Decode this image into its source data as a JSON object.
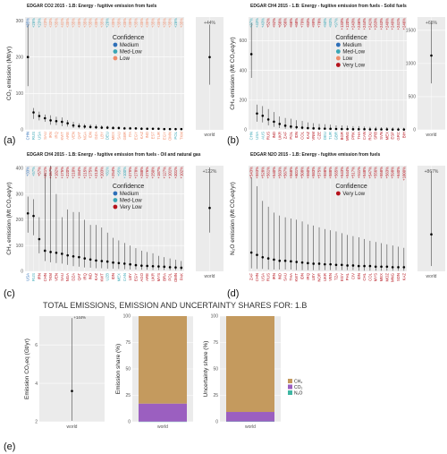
{
  "colors": {
    "Medium": "#2e6fb8",
    "Med-Low": "#3aa6b5",
    "Low": "#f08c6a",
    "Very Low": "#b5121b",
    "panel_bg": "#ebebeb",
    "grid": "#ffffff",
    "ch4": "#c49a5e",
    "co2": "#9b5fc0",
    "n2o": "#3fb6a3"
  },
  "legend": {
    "title": "Confidence",
    "items": [
      "Medium",
      "Med-Low",
      "Low",
      "Very Low"
    ]
  },
  "panel_e": {
    "title": "TOTAL EMISSIONS, EMISSION AND UNCERTAINTY SHARES FOR: 1.B",
    "label": "(e)"
  },
  "chart_data": [
    {
      "id": "a",
      "type": "scatter",
      "label": "(a)",
      "title": "EDGAR CO2 2015 - 1.B: Energy - fugitive emission from fuels",
      "ylabel": "CO₂ emission (Mt/yr)",
      "ylim": [
        0,
        310
      ],
      "yticks": [
        0,
        100,
        200,
        300
      ],
      "legend_items": [
        "Medium",
        "Med-Low",
        "Low"
      ],
      "categories": [
        "CHN",
        "RUS",
        "USA",
        "SAU",
        "IRN",
        "IRQ",
        "KWT",
        "ARE",
        "VEN",
        "QAT",
        "NGA",
        "IDN",
        "DZA",
        "LBY",
        "DEU",
        "MEX",
        "SAU",
        "GBR",
        "ITA",
        "EGY",
        "KAZ",
        "IND",
        "EST",
        "TUR",
        "EGY",
        "OMN",
        "POL",
        "TKM"
      ],
      "values": [
        200,
        48,
        38,
        32,
        26,
        24,
        22,
        18,
        12,
        10,
        9,
        8,
        7,
        6,
        6,
        5,
        5,
        4,
        4,
        4,
        3,
        3,
        3,
        3,
        2,
        2,
        2,
        2
      ],
      "lower": [
        120,
        30,
        26,
        22,
        14,
        13,
        10,
        9,
        5,
        4,
        3,
        3,
        2,
        2,
        2,
        2,
        2,
        2,
        2,
        1,
        1,
        1,
        1,
        1,
        1,
        1,
        1,
        1
      ],
      "upper": [
        290,
        60,
        50,
        42,
        40,
        36,
        34,
        27,
        22,
        18,
        16,
        15,
        14,
        12,
        11,
        10,
        9,
        8,
        8,
        7,
        7,
        6,
        6,
        6,
        5,
        5,
        5,
        5
      ],
      "uncertainty": [
        "+35%",
        "+26%",
        "+23%",
        "+23%",
        "+33%",
        "+35%",
        "+41%",
        "+35%",
        "+35%",
        "+35%",
        "+35%",
        "+35%",
        "+35%",
        "+35%",
        "+26%",
        "+35%",
        "+35%",
        "+35%",
        "+35%",
        "+35%",
        "+35%",
        "+35%",
        "+35%",
        "+35%",
        "+35%",
        "+35%",
        "+26%",
        "+35%"
      ],
      "confidence": [
        "Medium",
        "Med-Low",
        "Med-Low",
        "Low",
        "Low",
        "Low",
        "Low",
        "Low",
        "Low",
        "Low",
        "Low",
        "Low",
        "Low",
        "Low",
        "Med-Low",
        "Low",
        "Low",
        "Low",
        "Low",
        "Low",
        "Low",
        "Low",
        "Low",
        "Low",
        "Low",
        "Low",
        "Med-Low",
        "Low"
      ],
      "world": {
        "label": "world",
        "value": 580,
        "lower": 360,
        "upper": 840,
        "uncertainty": "+44%",
        "ylim": [
          0,
          900
        ],
        "yticks": []
      }
    },
    {
      "id": "b",
      "type": "scatter",
      "label": "(b)",
      "title": "EDGAR CH4 2015 - 1.B: Energy - fugitive emission from fuels - Solid fuels",
      "ylabel": "CH₄ emission (Mt CO₂eq/yr)",
      "ylim": [
        0,
        760
      ],
      "yticks": [
        0,
        200,
        400,
        600
      ],
      "legend_items": [
        "Medium",
        "Med-Low",
        "Low",
        "Very Low"
      ],
      "categories": [
        "CHN",
        "USA",
        "AUS",
        "RUS",
        "IND",
        "UKR",
        "ZAF",
        "POL",
        "IDN",
        "COL",
        "KAZ",
        "VNM",
        "CZE",
        "DEU",
        "TUR",
        "GBR",
        "BGR",
        "MNG",
        "PRK",
        "THA",
        "CAN",
        "ROU",
        "SRB",
        "SVN",
        "MEX",
        "ESP",
        "GRC",
        "BIH"
      ],
      "values": [
        510,
        110,
        95,
        70,
        55,
        40,
        28,
        22,
        18,
        15,
        12,
        10,
        9,
        8,
        7,
        6,
        5,
        5,
        4,
        4,
        4,
        3,
        3,
        3,
        3,
        2,
        2,
        2
      ],
      "lower": [
        350,
        55,
        50,
        30,
        20,
        12,
        7,
        6,
        4,
        3,
        2,
        2,
        2,
        2,
        1,
        1,
        1,
        1,
        1,
        1,
        1,
        1,
        1,
        1,
        1,
        1,
        1,
        1
      ],
      "upper": [
        720,
        170,
        160,
        140,
        120,
        90,
        80,
        75,
        65,
        60,
        50,
        45,
        40,
        38,
        35,
        30,
        30,
        28,
        25,
        25,
        22,
        20,
        20,
        18,
        18,
        16,
        15,
        14
      ],
      "uncertainty": [
        "+37%",
        "+43%",
        "+43%",
        "+52%",
        "+92%",
        "+66%",
        "+66%",
        "+66%",
        "+68%",
        "+79%",
        "+83%",
        "+99%",
        "+78%",
        "+50%",
        "+83%",
        "+97%",
        "+133%",
        "+120%",
        "+243%",
        "+246%",
        "+244%",
        "+241%",
        "+263%",
        "+243%",
        "+249%",
        "+249%",
        "+241%",
        "+246%"
      ],
      "confidence": [
        "Med-Low",
        "Med-Low",
        "Med-Low",
        "Very Low",
        "Very Low",
        "Very Low",
        "Very Low",
        "Very Low",
        "Very Low",
        "Very Low",
        "Very Low",
        "Very Low",
        "Very Low",
        "Med-Low",
        "Med-Low",
        "Med-Low",
        "Very Low",
        "Very Low",
        "Very Low",
        "Very Low",
        "Very Low",
        "Very Low",
        "Very Low",
        "Very Low",
        "Very Low",
        "Very Low",
        "Very Low",
        "Very Low"
      ],
      "world": {
        "label": "world",
        "value": 1120,
        "lower": 700,
        "upper": 1620,
        "uncertainty": "+65%",
        "ylim": [
          0,
          1700
        ],
        "yticks": [
          0,
          500,
          1000,
          1500
        ]
      }
    },
    {
      "id": "c",
      "type": "scatter",
      "label": "(c)",
      "title": "EDGAR CH4 2015 - 1.B: Energy - fugitive emission from fuels - Oil and natural gas",
      "ylabel": "CH₄ emission (Mt CO₂eq/yr)",
      "ylim": [
        0,
        410
      ],
      "yticks": [
        0,
        100,
        200,
        300,
        400
      ],
      "legend_items": [
        "Medium",
        "Med-Low",
        "Very Low"
      ],
      "categories": [
        "USA",
        "RUS",
        "IRN",
        "CHN",
        "TKM",
        "VEN",
        "SAU",
        "NGA",
        "DZA",
        "QAT",
        "IRQ",
        "IND",
        "KAZ",
        "KWT",
        "UZB",
        "IDN",
        "MEX",
        "CAN",
        "LBY",
        "EGY",
        "AGO",
        "ARE",
        "UKR",
        "MYS",
        "BRA",
        "POL",
        "OMN",
        "PAK"
      ],
      "values": [
        225,
        215,
        125,
        80,
        75,
        72,
        68,
        62,
        58,
        55,
        50,
        46,
        42,
        40,
        38,
        34,
        32,
        30,
        27,
        24,
        22,
        21,
        20,
        19,
        18,
        16,
        15,
        14
      ],
      "lower": [
        150,
        140,
        70,
        40,
        35,
        32,
        30,
        25,
        20,
        18,
        15,
        14,
        12,
        12,
        10,
        10,
        9,
        8,
        7,
        7,
        6,
        6,
        5,
        5,
        5,
        4,
        4,
        3
      ],
      "upper": [
        290,
        280,
        210,
        380,
        410,
        300,
        210,
        240,
        230,
        230,
        200,
        180,
        180,
        170,
        150,
        130,
        120,
        110,
        100,
        90,
        80,
        75,
        70,
        60,
        55,
        50,
        45,
        40
      ],
      "uncertainty": [
        "+33%",
        "+57%",
        "+57%",
        "+221%",
        "+157%",
        "+182%",
        "+175%",
        "+220%",
        "+210%",
        "+184%",
        "+215%",
        "+175%",
        "+213%",
        "+203%",
        "+81%",
        "+254%",
        "+95%",
        "+100%",
        "+279%",
        "+278%",
        "+288%",
        "+276%",
        "+250%",
        "+187%",
        "+127%",
        "+101%",
        "+201%",
        "+102%"
      ],
      "confidence": [
        "Medium",
        "Med-Low",
        "Very Low",
        "Very Low",
        "Very Low",
        "Very Low",
        "Very Low",
        "Very Low",
        "Very Low",
        "Very Low",
        "Very Low",
        "Very Low",
        "Very Low",
        "Very Low",
        "Med-Low",
        "Very Low",
        "Med-Low",
        "Med-Low",
        "Very Low",
        "Very Low",
        "Very Low",
        "Very Low",
        "Very Low",
        "Very Low",
        "Very Low",
        "Very Low",
        "Very Low",
        "Very Low"
      ],
      "world": {
        "label": "world",
        "value": 1800,
        "lower": 1100,
        "upper": 2950,
        "uncertainty": "+122%",
        "ylim": [
          0,
          3000
        ],
        "yticks": []
      }
    },
    {
      "id": "d",
      "type": "scatter",
      "label": "(d)",
      "title": "EDGAR N2O 2015 - 1.B: Energy - fugitive emission from fuels",
      "ylabel": "N₂O emission (Mt CO₂eq/yr)",
      "ylim": [
        0,
        1.8
      ],
      "yticks": [],
      "legend_items": [
        "Very Low"
      ],
      "categories": [
        "ZAF",
        "CHN",
        "USA",
        "RUS",
        "IRN",
        "IND",
        "SAU",
        "THA",
        "KWT",
        "IDN",
        "IRQ",
        "LBY",
        "NOR",
        "UKR",
        "VEN",
        "TZA",
        "EGY",
        "PHL",
        "CIV",
        "IDN",
        "CHL",
        "COL",
        "MYS",
        "MEX",
        "MOZ",
        "MNG",
        "SDN",
        "KAZ"
      ],
      "values": [
        0.32,
        0.28,
        0.24,
        0.22,
        0.2,
        0.18,
        0.18,
        0.17,
        0.16,
        0.15,
        0.14,
        0.13,
        0.13,
        0.12,
        0.12,
        0.11,
        0.11,
        0.1,
        0.1,
        0.09,
        0.09,
        0.09,
        0.08,
        0.08,
        0.08,
        0.07,
        0.07,
        0.07
      ],
      "lower": [
        0.05,
        0.04,
        0.04,
        0.03,
        0.03,
        0.03,
        0.03,
        0.03,
        0.02,
        0.02,
        0.02,
        0.02,
        0.02,
        0.02,
        0.02,
        0.02,
        0.02,
        0.02,
        0.02,
        0.01,
        0.01,
        0.01,
        0.01,
        0.01,
        0.01,
        0.01,
        0.01,
        0.01
      ],
      "upper": [
        1.6,
        1.45,
        1.2,
        1.1,
        1.0,
        0.95,
        0.92,
        0.9,
        0.88,
        0.85,
        0.8,
        0.78,
        0.75,
        0.72,
        0.7,
        0.68,
        0.65,
        0.62,
        0.6,
        0.58,
        0.55,
        0.52,
        0.5,
        0.48,
        0.46,
        0.44,
        0.42,
        0.4
      ],
      "uncertainty": [
        "+543%",
        "+593%",
        "+528%",
        "+561%",
        "+540%",
        "+563%",
        "+567%",
        "+568%",
        "+601%",
        "+508%",
        "+550%",
        "+583%",
        "+575%",
        "+598%",
        "+588%",
        "+565%",
        "+543%",
        "+544%",
        "+517%",
        "+511%",
        "+548%",
        "+547%",
        "+556%",
        "+558%",
        "+563%",
        "+598%",
        "+640%",
        "+1000%"
      ],
      "confidence": [
        "Very Low",
        "Very Low",
        "Very Low",
        "Very Low",
        "Very Low",
        "Very Low",
        "Very Low",
        "Very Low",
        "Very Low",
        "Very Low",
        "Very Low",
        "Very Low",
        "Very Low",
        "Very Low",
        "Very Low",
        "Very Low",
        "Very Low",
        "Very Low",
        "Very Low",
        "Very Low",
        "Very Low",
        "Very Low",
        "Very Low",
        "Very Low",
        "Very Low",
        "Very Low",
        "Very Low",
        "Very Low"
      ],
      "world": {
        "label": "world",
        "value": 3.5,
        "lower": 0.5,
        "upper": 9.5,
        "uncertainty": "+867%",
        "ylim": [
          0,
          10
        ],
        "yticks": []
      }
    },
    {
      "id": "e1",
      "type": "scatter",
      "ylabel": "Emission CO₂eq (Gt/yr)",
      "ylim": [
        2.0,
        7.5
      ],
      "yticks": [
        2,
        4,
        6
      ],
      "categories": [
        "world"
      ],
      "values": [
        3.6
      ],
      "lower": [
        2.05
      ],
      "upper": [
        7.4
      ],
      "uncertainty": [
        "+144%"
      ]
    },
    {
      "id": "e2",
      "type": "bar",
      "ylabel": "Emission share (%)",
      "ylim": [
        0,
        100
      ],
      "yticks": [
        0,
        25,
        50,
        75,
        100
      ],
      "categories": [
        "world"
      ],
      "series": [
        {
          "name": "N₂O",
          "values": [
            0.2
          ]
        },
        {
          "name": "CO₂",
          "values": [
            17
          ]
        },
        {
          "name": "CH₄",
          "values": [
            82.8
          ]
        }
      ]
    },
    {
      "id": "e3",
      "type": "bar",
      "ylabel": "Uncertainty share (%)",
      "ylim": [
        0,
        100
      ],
      "yticks": [
        0,
        25,
        50,
        75,
        100
      ],
      "categories": [
        "world"
      ],
      "series": [
        {
          "name": "N₂O",
          "values": [
            0.3
          ]
        },
        {
          "name": "CO₂",
          "values": [
            9
          ]
        },
        {
          "name": "CH₄",
          "values": [
            90.7
          ]
        }
      ],
      "legend_labels": [
        "CH₄",
        "CO₂",
        "N₂O"
      ]
    }
  ]
}
